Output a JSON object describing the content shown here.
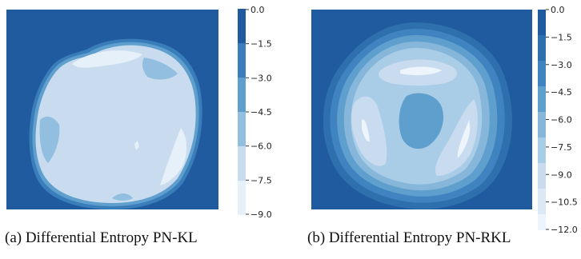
{
  "chart_data": [
    {
      "type": "heatmap",
      "title": "",
      "caption": "(a)  Differential Entropy PN-KL",
      "colorbar": {
        "ticks": [
          0.0,
          -1.5,
          -3.0,
          -4.5,
          -6.0,
          -7.5,
          -9.0
        ],
        "tick_labels": [
          "0.0",
          "−1.5",
          "−3.0",
          "−4.5",
          "−6.0",
          "−7.5",
          "−9.0"
        ],
        "range": [
          -9.0,
          0.0
        ]
      },
      "contour_levels": [
        0.0,
        -1.5,
        -3.0,
        -4.5,
        -6.0,
        -7.5,
        -9.0
      ],
      "region_values": {
        "background": -0.75,
        "outer_ring": -2.25,
        "second_ring": -3.75,
        "interior": -6.75,
        "bright_patches": -8.25,
        "mid_patches": -5.25
      },
      "colors": {
        "level_bands": [
          "#1f5b9e",
          "#3a7dbb",
          "#5f9fcd",
          "#92bfdf",
          "#c9dcef",
          "#e6f0f9"
        ],
        "background": "#1f5b9e"
      }
    },
    {
      "type": "heatmap",
      "title": "",
      "caption": "(b)  Differential Entropy PN-RKL",
      "colorbar": {
        "ticks": [
          0.0,
          -1.5,
          -3.0,
          -4.5,
          -6.0,
          -7.5,
          -9.0,
          -10.5,
          -12.0
        ],
        "tick_labels": [
          "0.0",
          "−1.5",
          "−3.0",
          "−4.5",
          "−6.0",
          "−7.5",
          "−9.0",
          "−10.5",
          "−12.0"
        ],
        "range": [
          -12.0,
          0.0
        ]
      },
      "contour_levels": [
        0.0,
        -1.5,
        -3.0,
        -4.5,
        -6.0,
        -7.5,
        -9.0,
        -10.5,
        -12.0
      ],
      "region_values": {
        "background": -0.75,
        "rings": [
          -2.25,
          -3.75,
          -5.25,
          -6.75,
          -8.25
        ],
        "lobes": -9.75,
        "lobe_highlights": -11.25,
        "center": -4.5
      },
      "colors": {
        "level_bands": [
          "#1f5b9e",
          "#2e6fae",
          "#3f84c0",
          "#5f9fcd",
          "#86b7da",
          "#aacde7",
          "#c9dcef",
          "#dce8f5",
          "#eef4fb"
        ],
        "background": "#1f5b9e"
      }
    }
  ]
}
